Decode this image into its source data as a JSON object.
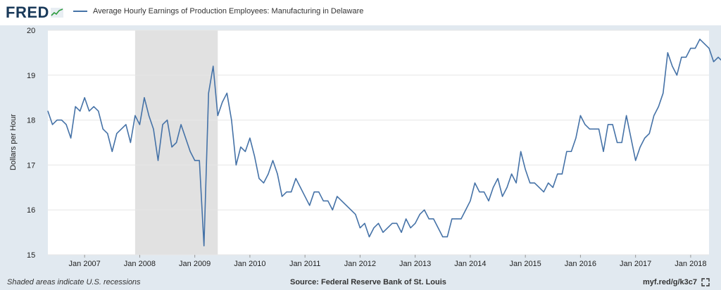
{
  "header": {
    "logo_text": "FRED",
    "legend_label": "Average Hourly Earnings of Production Employees: Manufacturing in Delaware"
  },
  "footer": {
    "note": "Shaded areas indicate U.S. recessions",
    "source": "Source: Federal Reserve Bank of St. Louis",
    "url": "myf.red/g/k3c7"
  },
  "colors": {
    "series": "#4572a7",
    "recession": "#e1e1e1",
    "plot_bg": "#ffffff",
    "frame_bg": "#e1e9f0"
  },
  "chart_data": {
    "type": "line",
    "title": "",
    "xlabel": "",
    "ylabel": "Dollars per Hour",
    "ylim": [
      15,
      20
    ],
    "yticks": [
      15,
      16,
      17,
      18,
      19,
      20
    ],
    "xlim": [
      "2006-05",
      "2018-05"
    ],
    "xticks": [
      {
        "date": "2007-01",
        "label": "Jan 2007"
      },
      {
        "date": "2008-01",
        "label": "Jan 2008"
      },
      {
        "date": "2009-01",
        "label": "Jan 2009"
      },
      {
        "date": "2010-01",
        "label": "Jan 2010"
      },
      {
        "date": "2011-01",
        "label": "Jan 2011"
      },
      {
        "date": "2012-01",
        "label": "Jan 2012"
      },
      {
        "date": "2013-01",
        "label": "Jan 2013"
      },
      {
        "date": "2014-01",
        "label": "Jan 2014"
      },
      {
        "date": "2015-01",
        "label": "Jan 2015"
      },
      {
        "date": "2016-01",
        "label": "Jan 2016"
      },
      {
        "date": "2017-01",
        "label": "Jan 2017"
      },
      {
        "date": "2018-01",
        "label": "Jan 2018"
      }
    ],
    "recessions": [
      {
        "start": "2007-12",
        "end": "2009-06"
      }
    ],
    "grid": true,
    "legend": "top-left",
    "series": [
      {
        "name": "Average Hourly Earnings of Production Employees: Manufacturing in Delaware",
        "start": "2006-05",
        "frequency": "monthly",
        "values": [
          18.2,
          17.9,
          18.0,
          18.0,
          17.9,
          17.6,
          18.3,
          18.2,
          18.5,
          18.2,
          18.3,
          18.2,
          17.8,
          17.7,
          17.3,
          17.7,
          17.8,
          17.9,
          17.5,
          18.1,
          17.9,
          18.5,
          18.1,
          17.8,
          17.1,
          17.9,
          18.0,
          17.4,
          17.5,
          17.9,
          17.6,
          17.3,
          17.1,
          17.1,
          15.2,
          18.6,
          19.2,
          18.1,
          18.4,
          18.6,
          18.0,
          17.0,
          17.4,
          17.3,
          17.6,
          17.2,
          16.7,
          16.6,
          16.8,
          17.1,
          16.8,
          16.3,
          16.4,
          16.4,
          16.7,
          16.5,
          16.3,
          16.1,
          16.4,
          16.4,
          16.2,
          16.2,
          16.0,
          16.3,
          16.2,
          16.1,
          16.0,
          15.9,
          15.6,
          15.7,
          15.4,
          15.6,
          15.7,
          15.5,
          15.6,
          15.7,
          15.7,
          15.5,
          15.8,
          15.6,
          15.7,
          15.9,
          16.0,
          15.8,
          15.8,
          15.6,
          15.4,
          15.4,
          15.8,
          15.8,
          15.8,
          16.0,
          16.2,
          16.6,
          16.4,
          16.4,
          16.2,
          16.5,
          16.7,
          16.3,
          16.5,
          16.8,
          16.6,
          17.3,
          16.9,
          16.6,
          16.6,
          16.5,
          16.4,
          16.6,
          16.5,
          16.8,
          16.8,
          17.3,
          17.3,
          17.6,
          18.1,
          17.9,
          17.8,
          17.8,
          17.8,
          17.3,
          17.9,
          17.9,
          17.5,
          17.5,
          18.1,
          17.6,
          17.1,
          17.4,
          17.6,
          17.7,
          18.1,
          18.3,
          18.6,
          19.5,
          19.2,
          19.0,
          19.4,
          19.4,
          19.6,
          19.6,
          19.8,
          19.7,
          19.6,
          19.3,
          19.4,
          19.3
        ]
      }
    ]
  }
}
